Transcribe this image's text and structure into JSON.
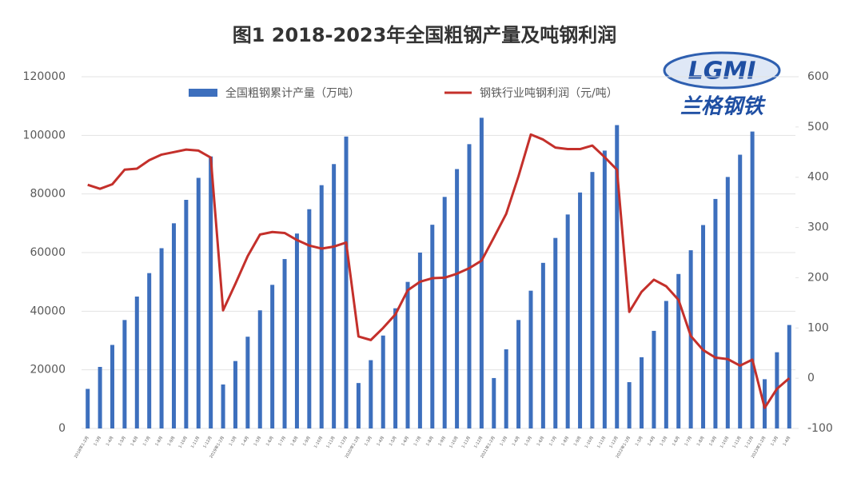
{
  "chart_data": {
    "type": "bar+line",
    "title": "图1 2018-2023年全国粗钢产量及吨钢利润",
    "logo": {
      "text": "LGMI",
      "subtext": "兰格钢铁"
    },
    "categories": [
      "2018年1-2月",
      "1-3月",
      "1-4月",
      "1-5月",
      "1-6月",
      "1-7月",
      "1-8月",
      "1-9月",
      "1-10月",
      "1-11月",
      "1-12月",
      "2019年1-2月",
      "1-3月",
      "1-4月",
      "1-5月",
      "1-6月",
      "1-7月",
      "1-8月",
      "1-9月",
      "1-10月",
      "1-11月",
      "1-12月",
      "2020年1-2月",
      "1-3月",
      "1-4月",
      "1-5月",
      "1-6月",
      "1-7月",
      "1-8月",
      "1-9月",
      "1-10月",
      "1-11月",
      "1-12月",
      "2021年1-2月",
      "1-3月",
      "1-4月",
      "1-5月",
      "1-6月",
      "1-7月",
      "1-8月",
      "1-9月",
      "1-10月",
      "1-11月",
      "1-12月",
      "2022年1-2月",
      "1-3月",
      "1-4月",
      "1-5月",
      "1-6月",
      "1-7月",
      "1-8月",
      "1-9月",
      "1-10月",
      "1-11月",
      "1-12月",
      "2023年1-2月",
      "1-3月",
      "1-4月"
    ],
    "series": [
      {
        "name": "全国粗钢累计产量（万吨）",
        "type": "bar",
        "color": "#3d6fbd",
        "values": [
          13500,
          21000,
          28500,
          37000,
          45000,
          53000,
          61500,
          70000,
          78000,
          85500,
          92800,
          15000,
          23000,
          31300,
          40300,
          49000,
          57800,
          66500,
          74800,
          83000,
          90200,
          99600,
          15500,
          23300,
          31700,
          41000,
          50000,
          60000,
          69500,
          79000,
          88500,
          97000,
          106000,
          17200,
          27000,
          37000,
          47000,
          56500,
          65000,
          73000,
          80500,
          87500,
          94800,
          103500,
          15800,
          24300,
          33300,
          43500,
          52700,
          60800,
          69400,
          78300,
          85800,
          93400,
          101300,
          16800,
          26000,
          35300
        ]
      },
      {
        "name": "钢铁行业吨钢利润（元/吨）",
        "type": "line",
        "axis": "y2",
        "color": "#c4302b",
        "values": [
          385,
          377,
          386,
          415,
          417,
          434,
          445,
          450,
          455,
          453,
          439,
          135,
          188,
          243,
          286,
          291,
          289,
          275,
          264,
          258,
          262,
          270,
          83,
          76,
          100,
          127,
          175,
          192,
          199,
          200,
          208,
          219,
          234,
          280,
          327,
          402,
          485,
          475,
          459,
          456,
          456,
          463,
          440,
          415,
          132,
          172,
          196,
          183,
          156,
          84,
          56,
          41,
          38,
          25,
          37,
          -59,
          -21,
          0
        ]
      }
    ],
    "ylim": [
      0,
      120000
    ],
    "yticks": [
      0,
      20000,
      40000,
      60000,
      80000,
      100000,
      120000
    ],
    "y2lim": [
      -100,
      600
    ],
    "y2ticks": [
      -100,
      0,
      100,
      200,
      300,
      400,
      500,
      600
    ],
    "grid": true
  }
}
